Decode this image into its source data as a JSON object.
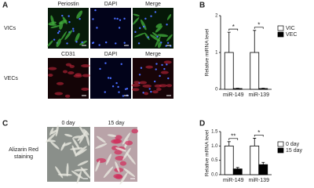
{
  "panels": {
    "A": {
      "letter": "A",
      "row_labels": [
        "VICs",
        "VECs"
      ],
      "row1_columns": [
        "Periostin",
        "DAPI",
        "Merge"
      ],
      "row2_columns": [
        "CD31",
        "DAPI",
        "Merge"
      ]
    },
    "C": {
      "letter": "C",
      "row_label": "Alizarin Red staining",
      "columns": [
        "0 day",
        "15 day"
      ]
    }
  },
  "chart_data": [
    {
      "type": "bar",
      "panel": "B",
      "y_label": "Relative miRNA level",
      "categories": [
        "miR-149",
        "miR-139"
      ],
      "series": [
        {
          "name": "VIC",
          "color": "#ffffff",
          "values": [
            1,
            1
          ],
          "errors": [
            0.55,
            0.6
          ]
        },
        {
          "name": "VEC",
          "color": "#000000",
          "values": [
            0.02,
            0.02
          ],
          "errors": [
            0.01,
            0.01
          ]
        }
      ],
      "significance": [
        "*",
        "*"
      ],
      "ylim": [
        0,
        2
      ],
      "yticks": [
        0,
        1,
        2
      ]
    },
    {
      "type": "bar",
      "panel": "D",
      "y_label": "Relative mRNA level",
      "categories": [
        "miR-149",
        "miR-139"
      ],
      "series": [
        {
          "name": "0 day",
          "color": "#ffffff",
          "values": [
            1,
            1
          ],
          "errors": [
            0.15,
            0.27
          ]
        },
        {
          "name": "15 day",
          "color": "#000000",
          "values": [
            0.2,
            0.35
          ],
          "errors": [
            0.05,
            0.08
          ]
        }
      ],
      "significance": [
        "**",
        "*"
      ],
      "ylim": [
        0,
        1.5
      ],
      "yticks": [
        {
          "value": 0,
          "label": "0.0"
        },
        {
          "value": 0.5,
          "label": "0.5"
        },
        {
          "value": 1,
          "label": "1.0"
        },
        {
          "value": 1.5,
          "label": "1.5"
        }
      ]
    }
  ]
}
